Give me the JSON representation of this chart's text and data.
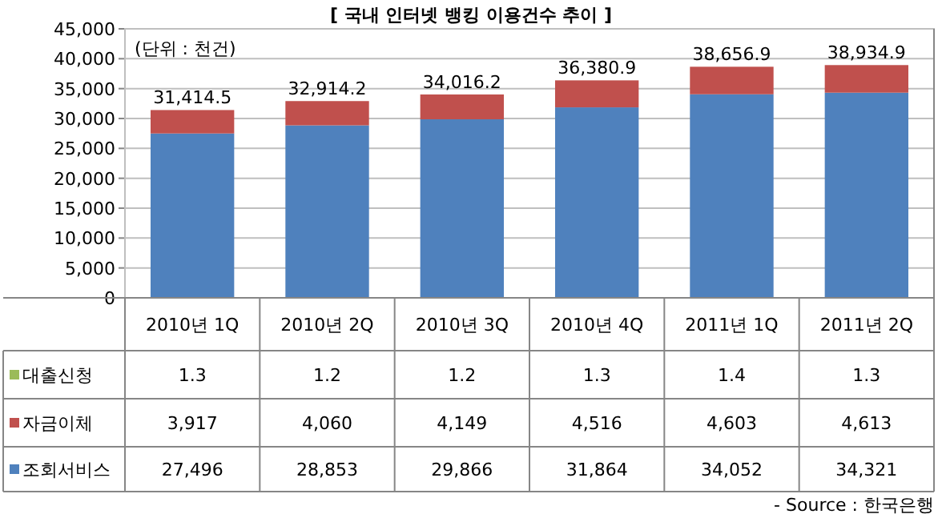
{
  "chart_data": {
    "type": "bar",
    "title": "[ 국내 인터넷 뱅킹 이용건수 추이 ]",
    "stacked": true,
    "legend": "bottom",
    "grid": "y",
    "categories": [
      "2010년 1Q",
      "2010년 2Q",
      "2010년 3Q",
      "2010년 4Q",
      "2011년 1Q",
      "2011년 2Q"
    ],
    "series": [
      {
        "name": "조회서비스",
        "color": "#4f81bd",
        "values": [
          27496,
          28853,
          29866,
          31864,
          34052,
          34321
        ],
        "value_labels": [
          "27,496",
          "28,853",
          "29,866",
          "31,864",
          "34,052",
          "34,321"
        ]
      },
      {
        "name": "자금이체",
        "color": "#c0504d",
        "values": [
          3917,
          4060,
          4149,
          4516,
          4603,
          4613
        ],
        "value_labels": [
          "3,917",
          "4,060",
          "4,149",
          "4,516",
          "4,603",
          "4,613"
        ]
      },
      {
        "name": "대출신청",
        "color": "#9bbb59",
        "values": [
          1.3,
          1.2,
          1.2,
          1.3,
          1.4,
          1.3
        ],
        "value_labels": [
          "1.3",
          "1.2",
          "1.2",
          "1.3",
          "1.4",
          "1.3"
        ]
      }
    ],
    "ylim": [
      0,
      45000
    ],
    "yticks": [
      0,
      {
        "value": 5000,
        "label": "5,000"
      },
      {
        "value": 10000,
        "label": "10,000"
      },
      {
        "value": 15000,
        "label": "15,000"
      },
      {
        "value": 20000,
        "label": "20,000"
      },
      {
        "value": 25000,
        "label": "25,000"
      },
      {
        "value": 30000,
        "label": "30,000"
      },
      {
        "value": 35000,
        "label": "35,000"
      },
      {
        "value": 40000,
        "label": "40,000"
      },
      {
        "value": 45000,
        "label": "45,000"
      }
    ],
    "annotations": [
      "(단위 : 천건)",
      "- Source : 한국은행",
      {
        "text": "31,414.5",
        "x": "2010년 1Q",
        "y": 31414.5
      },
      {
        "text": "32,914.2",
        "x": "2010년 2Q",
        "y": 32914.2
      },
      {
        "text": "34,016.2",
        "x": "2010년 3Q",
        "y": 34016.2
      },
      {
        "text": "36,380.9",
        "x": "2010년 4Q",
        "y": 36380.9
      },
      {
        "text": "38,656.9",
        "x": "2011년 1Q",
        "y": 38656.9
      },
      {
        "text": "38,934.9",
        "x": "2011년 2Q",
        "y": 38934.9
      }
    ]
  }
}
